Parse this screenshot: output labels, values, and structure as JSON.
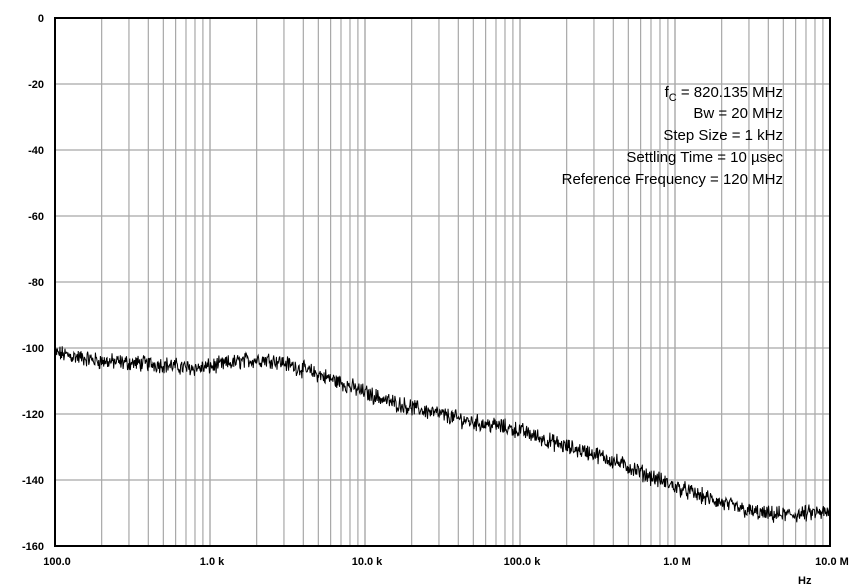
{
  "chart_data": {
    "type": "line",
    "title": "",
    "xlabel": "Hz",
    "ylabel": "",
    "x_scale": "log",
    "xlim": [
      100,
      10000000
    ],
    "ylim": [
      -160,
      0
    ],
    "grid": true,
    "y_ticks": [
      0,
      -20,
      -40,
      -60,
      -80,
      -100,
      -120,
      -140,
      -160
    ],
    "y_tick_labels": [
      "0",
      "-20",
      "-40",
      "-60",
      "-80",
      "-100",
      "-120",
      "-140",
      "-160"
    ],
    "x_tick_values": [
      100,
      1000,
      10000,
      100000,
      1000000,
      10000000
    ],
    "x_tick_labels": [
      "100.0",
      "1.0 k",
      "10.0 k",
      "100.0 k",
      "1.0 M",
      "10.0 M"
    ],
    "annotations": {
      "fc_symbol": "f",
      "fc_sub": "C",
      "fc_value": " = 820.135 MHz",
      "bw": "Bw =  20 MHz",
      "step": "Step Size = 1 kHz",
      "settling": "Settling Time = 10 µsec",
      "ref": "Reference Frequency = 120 MHz"
    },
    "series": [
      {
        "x": [
          100,
          150,
          200,
          300,
          500,
          700,
          900,
          1200,
          1600,
          2000,
          2500,
          3000,
          4000,
          5000,
          7000,
          10000,
          15000,
          20000,
          30000,
          50000,
          70000,
          100000,
          150000,
          200000,
          300000,
          500000,
          700000,
          1000000,
          1500000,
          2000000,
          3000000,
          4000000,
          6000000,
          8000000,
          10000000
        ],
        "y": [
          -101.5,
          -103,
          -104,
          -104.5,
          -105,
          -106,
          -106,
          -105,
          -104,
          -103.5,
          -103.5,
          -104.5,
          -106.5,
          -108,
          -110.5,
          -113.5,
          -116.5,
          -118,
          -120,
          -122.5,
          -123.5,
          -125,
          -128,
          -130,
          -132,
          -136,
          -139,
          -142,
          -145,
          -147,
          -149.5,
          -150.5,
          -150.5,
          -150,
          -150
        ],
        "color": "#000000"
      }
    ]
  }
}
